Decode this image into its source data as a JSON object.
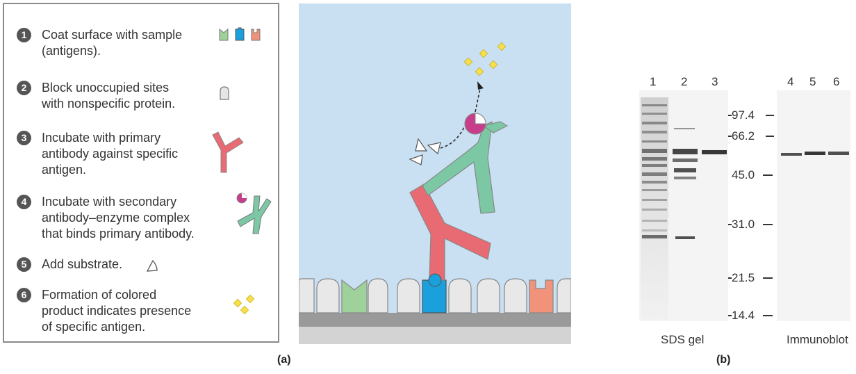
{
  "steps": [
    {
      "num": "1",
      "text_lines": [
        "Coat surface with sample",
        "(antigens)."
      ]
    },
    {
      "num": "2",
      "text_lines": [
        "Block unoccupied sites",
        "with nonspecific protein."
      ]
    },
    {
      "num": "3",
      "text_lines": [
        "Incubate with primary",
        "antibody against specific",
        "antigen."
      ]
    },
    {
      "num": "4",
      "text_lines": [
        "Incubate with secondary",
        "antibody–enzyme complex",
        "that binds primary antibody."
      ]
    },
    {
      "num": "5",
      "text_lines": [
        "Add substrate."
      ]
    },
    {
      "num": "6",
      "text_lines": [
        "Formation of colored",
        "product indicates presence",
        "of specific antigen."
      ]
    }
  ],
  "panel_a_label": "(a)",
  "panel_b_label": "(b)",
  "gel": {
    "sds_lanes": [
      "1",
      "2",
      "3"
    ],
    "immuno_lanes": [
      "4",
      "5",
      "6"
    ],
    "mw_markers": [
      "97.4",
      "66.2",
      "45.0",
      "31.0",
      "21.5",
      "14.4"
    ],
    "sds_caption": "SDS gel",
    "immuno_caption": "Immunoblot"
  },
  "colors": {
    "antigen_green": "#9fd29b",
    "antigen_blue": "#1aa0dc",
    "antigen_orange": "#f0937a",
    "primary_antibody": "#e86a72",
    "secondary_antibody": "#7cc8a4",
    "enzyme": "#c83c8c",
    "product": "#f7e04a",
    "background_well": "#c9dff2"
  }
}
